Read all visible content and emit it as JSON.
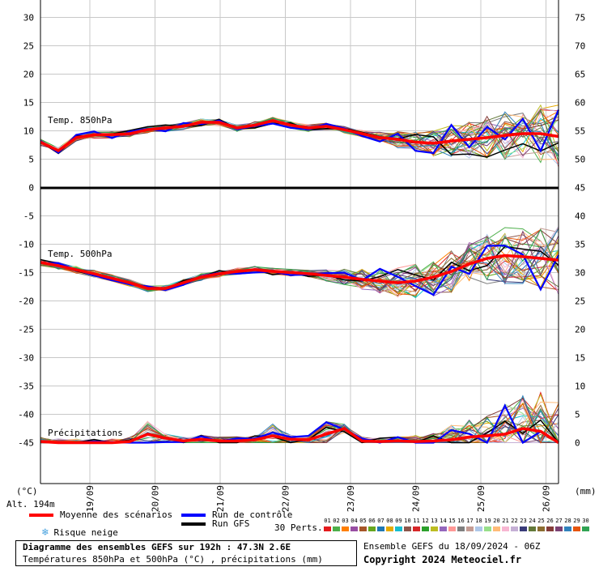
{
  "chart_data": {
    "type": "line",
    "title": "Diagramme des ensembles GEFS sur 192h : 47.3N 2.6E",
    "subtitle": "Températures 850hPa et 500hPa (°C) , précipitations (mm)",
    "x_dates": [
      "19/09",
      "20/09",
      "21/09",
      "22/09",
      "23/09",
      "24/09",
      "25/09",
      "26/09"
    ],
    "left_axis_label": "(°C)",
    "right_axis_label": "(mm)",
    "altitude_label": "Alt. 194m",
    "y_left_ticks": [
      30,
      25,
      20,
      15,
      10,
      5,
      0,
      -5,
      -10,
      -15,
      -20,
      -25,
      -30,
      -35,
      -40,
      -45
    ],
    "y_right_ticks": [
      75,
      70,
      65,
      60,
      55,
      50,
      45,
      40,
      35,
      30,
      25,
      20,
      15,
      10,
      5,
      0
    ],
    "panels": {
      "t850": {
        "label": "Temp. 850hPa",
        "mean": [
          8,
          6.5,
          8.8,
          9.3,
          9.3,
          9.5,
          10.2,
          10.5,
          10.8,
          11.5,
          11.5,
          10.5,
          11,
          11.8,
          11,
          10.5,
          10.8,
          10.2,
          9.5,
          8.8,
          8.5,
          8,
          7.8,
          8.2,
          8.5,
          8.8,
          9.2,
          9.5,
          9.5,
          9
        ]
      },
      "t500": {
        "label": "Temp. 500hPa",
        "mean": [
          -13.2,
          -13.8,
          -14.5,
          -15.2,
          -16,
          -16.8,
          -17.8,
          -17.8,
          -16.8,
          -15.8,
          -15.2,
          -14.8,
          -14.5,
          -14.8,
          -15,
          -15.2,
          -15.5,
          -15.8,
          -16.2,
          -16.5,
          -16.8,
          -16.5,
          -15.8,
          -14.8,
          -13.5,
          -12.5,
          -12,
          -12.2,
          -12.5,
          -12.8
        ]
      },
      "precip": {
        "label": "Précipitations",
        "mean": [
          0.2,
          0,
          0,
          0,
          0,
          0.2,
          1.5,
          0.8,
          0.3,
          0.6,
          0.3,
          0.3,
          0.5,
          1.2,
          0.6,
          0.5,
          1.5,
          2.5,
          0.3,
          0.2,
          0.3,
          0.2,
          0.3,
          0.5,
          1,
          1.2,
          1.5,
          2.5,
          2,
          0
        ]
      }
    },
    "legend": {
      "mean": "Moyenne des scénarios",
      "control": "Run de contrôle",
      "gfs": "Run GFS",
      "snow": "Risque neige",
      "perts_label": "30 Perts.",
      "perts": [
        "01",
        "02",
        "03",
        "04",
        "05",
        "06",
        "07",
        "08",
        "09",
        "10",
        "11",
        "12",
        "13",
        "14",
        "15",
        "16",
        "17",
        "18",
        "19",
        "20",
        "21",
        "22",
        "23",
        "24",
        "25",
        "26",
        "27",
        "28",
        "29",
        "30"
      ],
      "pert_colors": [
        "#e41a1c",
        "#4daf4a",
        "#ff7f00",
        "#984ea3",
        "#a65628",
        "#66a61e",
        "#1f78b4",
        "#e6ab02",
        "#17becf",
        "#8c564b",
        "#d62728",
        "#2ca02c",
        "#bcbd22",
        "#9467bd",
        "#ff9896",
        "#7f7f7f",
        "#c49c94",
        "#aec7e8",
        "#98df8a",
        "#ffbb78",
        "#f7b6d2",
        "#c5b0d5",
        "#393b79",
        "#637939",
        "#8c6d31",
        "#843c39",
        "#7b4173",
        "#3182bd",
        "#e6550d",
        "#31a354"
      ]
    },
    "colors": {
      "mean": "#ff0000",
      "control": "#0000ff",
      "gfs": "#000000",
      "grid": "#c8c8c8"
    }
  },
  "footer": {
    "ensemble_info": "Ensemble GEFS du 18/09/2024 - 06Z",
    "copyright": "Copyright 2024 Meteociel.fr"
  }
}
